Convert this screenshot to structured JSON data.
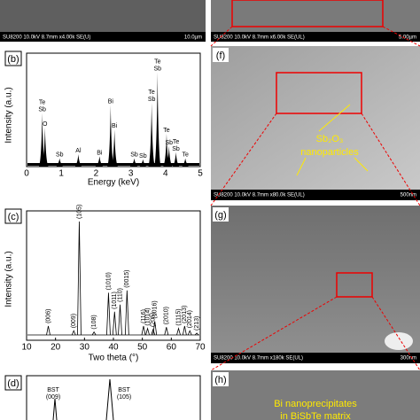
{
  "top_left": {
    "info": "SU8200 10.0kV 8.7mm x4.00k SE(U)",
    "scale": "10.0µm"
  },
  "top_right": {
    "info": "SU8200 10.0kV 8.7mm x6.00k SE(UL)",
    "scale": "5.00µm"
  },
  "panel_b": {
    "label": "(b)",
    "xlabel": "Energy (keV)",
    "ylabel": "Intensity (a.u.)",
    "xlim": [
      0,
      5
    ],
    "ylim": [
      0,
      100
    ],
    "xticks": [
      0,
      1,
      2,
      3,
      4,
      5
    ],
    "peaks": [
      {
        "x": 0.45,
        "h": 52,
        "label": "Te\nSb"
      },
      {
        "x": 0.53,
        "h": 38,
        "label": "O"
      },
      {
        "x": 0.95,
        "h": 8,
        "label": "Sb"
      },
      {
        "x": 1.49,
        "h": 12,
        "label": "Al"
      },
      {
        "x": 2.1,
        "h": 10,
        "label": "Bi"
      },
      {
        "x": 2.42,
        "h": 60,
        "label": "Bi"
      },
      {
        "x": 2.53,
        "h": 36,
        "label": "Bi"
      },
      {
        "x": 3.1,
        "h": 8,
        "label": "Sb"
      },
      {
        "x": 3.35,
        "h": 7,
        "label": "Sb"
      },
      {
        "x": 3.6,
        "h": 62,
        "label": "Te\nSb"
      },
      {
        "x": 3.77,
        "h": 92,
        "label": "Te\nSb"
      },
      {
        "x": 4.03,
        "h": 32,
        "label": "Te"
      },
      {
        "x": 4.1,
        "h": 20,
        "label": "Sb"
      },
      {
        "x": 4.3,
        "h": 14,
        "label": "Te\nSb"
      },
      {
        "x": 4.57,
        "h": 8,
        "label": "Te"
      }
    ]
  },
  "panel_c": {
    "label": "(c)",
    "xlabel": "Two theta (°)",
    "ylabel": "Intensity (a.u.)",
    "xlim": [
      10,
      70
    ],
    "ylim": [
      0,
      100
    ],
    "xticks": [
      10,
      20,
      30,
      40,
      50,
      60,
      70
    ],
    "peaks": [
      {
        "x": 17.5,
        "h": 12,
        "label": "(006)"
      },
      {
        "x": 26.3,
        "h": 8,
        "label": "(009)"
      },
      {
        "x": 28.2,
        "h": 100,
        "label": "(105)"
      },
      {
        "x": 33.3,
        "h": 7,
        "label": "(108)"
      },
      {
        "x": 38.3,
        "h": 40,
        "label": "(1010)"
      },
      {
        "x": 40.4,
        "h": 24,
        "label": "(1011)"
      },
      {
        "x": 42.3,
        "h": 30,
        "label": "(110)"
      },
      {
        "x": 44.7,
        "h": 42,
        "label": "(0015)"
      },
      {
        "x": 50.4,
        "h": 12,
        "label": "(116)"
      },
      {
        "x": 51.8,
        "h": 10,
        "label": "(1014)"
      },
      {
        "x": 53.7,
        "h": 9,
        "label": "(205)"
      },
      {
        "x": 54.3,
        "h": 16,
        "label": "(1016)"
      },
      {
        "x": 58.3,
        "h": 11,
        "label": "(2010)"
      },
      {
        "x": 62.5,
        "h": 10,
        "label": "(1115)"
      },
      {
        "x": 64.6,
        "h": 12,
        "label": "(2013)"
      },
      {
        "x": 66.4,
        "h": 8,
        "label": "(2014)"
      },
      {
        "x": 68.8,
        "h": 6,
        "label": "(213)"
      }
    ]
  },
  "panel_d": {
    "label": "(d)",
    "peak1": "BST\n(009)",
    "peak2": "BST\n(105)"
  },
  "panel_f": {
    "label": "(f)",
    "annotation": [
      "Sb₂O₃",
      "nanoparticles"
    ],
    "info": "SU8200 10.0kV 8.7mm x80.0k SE(UL)",
    "scale": "500nm"
  },
  "panel_g": {
    "label": "(g)",
    "info": "SU8200 10.0kV 8.7mm x180k SE(UL)",
    "scale": "300nm"
  },
  "panel_h": {
    "label": "(h)",
    "annotation": [
      "Bi nanoprecipitates",
      "in BiSbTe matrix"
    ]
  }
}
